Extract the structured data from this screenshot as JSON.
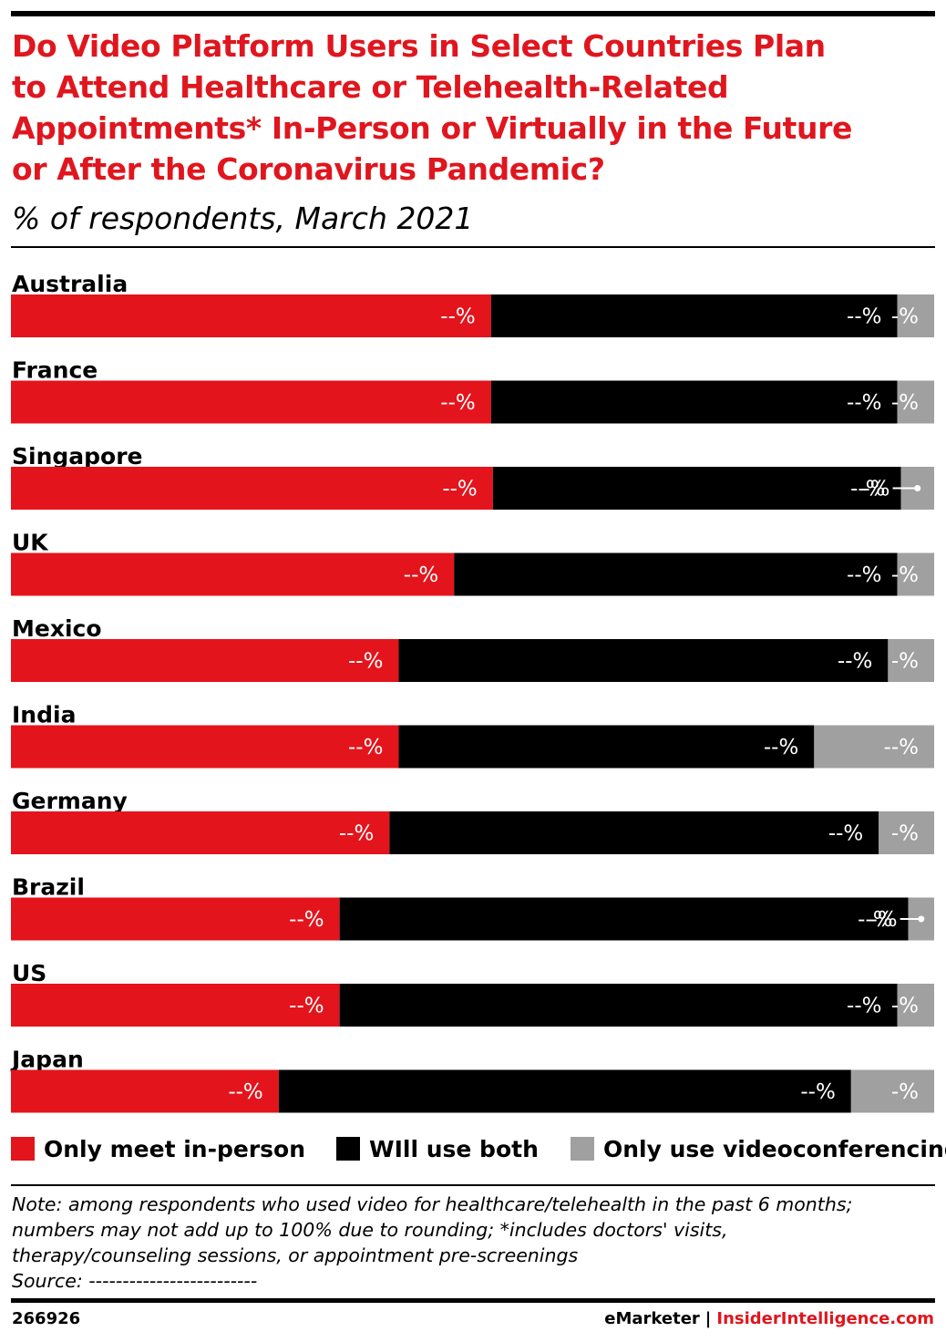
{
  "header": {
    "title_lines": [
      "Do Video Platform Users in Select Countries Plan",
      "to Attend Healthcare or Telehealth-Related",
      "Appointments* In-Person or Virtually in the Future",
      "or After the Coronavirus Pandemic?"
    ],
    "subtitle": "% of respondents, March 2021"
  },
  "colors": {
    "in_person": "#e4141c",
    "both": "#000000",
    "video": "#a0a0a0",
    "title": "#e0161e"
  },
  "chart_data": {
    "type": "bar",
    "orientation": "horizontal",
    "stacked": true,
    "title": "Do Video Platform Users in Select Countries Plan to Attend Healthcare or Telehealth-Related Appointments* In-Person or Virtually in the Future or After the Coronavirus Pandemic?",
    "subtitle": "% of respondents, March 2021",
    "categories": [
      "Australia",
      "France",
      "Singapore",
      "UK",
      "Mexico",
      "India",
      "Germany",
      "Brazil",
      "US",
      "Japan"
    ],
    "series": [
      {
        "name": "Only meet in-person",
        "values": [
          52,
          52,
          52.2,
          48,
          42,
          42,
          41,
          35.6,
          35.6,
          29
        ],
        "labels": [
          "--%",
          "--%",
          "--%",
          "--%",
          "--%",
          "--%",
          "--%",
          "--%",
          "--%",
          "--%"
        ]
      },
      {
        "name": "WIll use both",
        "values": [
          44,
          44,
          44.2,
          48,
          53,
          45,
          53,
          61.6,
          60.4,
          62
        ],
        "labels": [
          "--%",
          "--%",
          "--%",
          "--%",
          "--%",
          "--%",
          "--%",
          "--%",
          "--%",
          "--%"
        ],
        "inside_labels": [
          "",
          "",
          "-%",
          "",
          "",
          "",
          "",
          "-%",
          "",
          ""
        ]
      },
      {
        "name": "Only use videoconferencing",
        "values": [
          4,
          4,
          3.6,
          4,
          5,
          13,
          6,
          2.8,
          4,
          9
        ],
        "labels": [
          "-%",
          "-%",
          "",
          "-%",
          "-%",
          "--%",
          "-%",
          "",
          "-%",
          "-%"
        ]
      }
    ],
    "xlim": [
      0,
      100
    ],
    "legend_position": "bottom",
    "grid": false
  },
  "legend": [
    {
      "label": "Only meet in-person",
      "color": "#e4141c"
    },
    {
      "label": "WIll use both",
      "color": "#000000"
    },
    {
      "label": "Only use videoconferencing",
      "color": "#a0a0a0"
    }
  ],
  "notes": {
    "lines": [
      "Note: among respondents who used video for healthcare/telehealth in the past 6 months;",
      "numbers may not add up to 100% due to rounding; *includes doctors' visits,",
      "therapy/counseling sessions, or appointment pre-screenings",
      "Source: -------------------------"
    ]
  },
  "footer": {
    "chart_id": "266926",
    "brand_left": "eMarketer",
    "separator": "|",
    "brand_right": "InsiderIntelligence.com"
  }
}
